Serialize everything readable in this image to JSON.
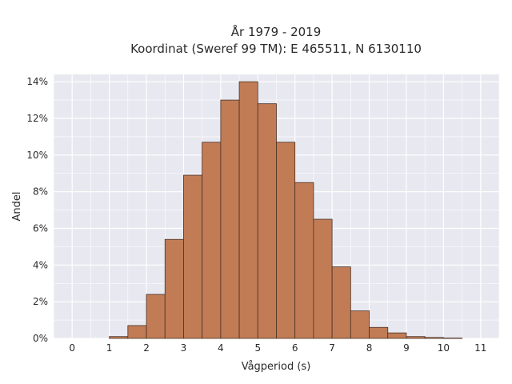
{
  "chart_data": {
    "type": "bar",
    "title": "År 1979 - 2019",
    "subtitle": "Koordinat (Sweref 99 TM): E 465511, N 6130110",
    "xlabel": "Vågperiod (s)",
    "ylabel": "Andel",
    "xlim": [
      -0.5,
      11.5
    ],
    "ylim": [
      0,
      14.4
    ],
    "x_ticks": [
      0,
      1,
      2,
      3,
      4,
      5,
      6,
      7,
      8,
      9,
      10,
      11
    ],
    "x_tick_labels": [
      "0",
      "1",
      "2",
      "3",
      "4",
      "5",
      "6",
      "7",
      "8",
      "9",
      "10",
      "11"
    ],
    "y_ticks": [
      0,
      2,
      4,
      6,
      8,
      10,
      12,
      14
    ],
    "y_tick_labels": [
      "0%",
      "2%",
      "4%",
      "6%",
      "8%",
      "10%",
      "12%",
      "14%"
    ],
    "bin_width": 0.5,
    "bins": [
      {
        "start": 1.0,
        "value": 0.1
      },
      {
        "start": 1.5,
        "value": 0.7
      },
      {
        "start": 2.0,
        "value": 2.4
      },
      {
        "start": 2.5,
        "value": 5.4
      },
      {
        "start": 3.0,
        "value": 8.9
      },
      {
        "start": 3.5,
        "value": 10.7
      },
      {
        "start": 4.0,
        "value": 13.0
      },
      {
        "start": 4.5,
        "value": 14.0
      },
      {
        "start": 5.0,
        "value": 12.8
      },
      {
        "start": 5.5,
        "value": 10.7
      },
      {
        "start": 6.0,
        "value": 8.5
      },
      {
        "start": 6.5,
        "value": 6.5
      },
      {
        "start": 7.0,
        "value": 3.9
      },
      {
        "start": 7.5,
        "value": 1.5
      },
      {
        "start": 8.0,
        "value": 0.6
      },
      {
        "start": 8.5,
        "value": 0.3
      },
      {
        "start": 9.0,
        "value": 0.1
      },
      {
        "start": 9.5,
        "value": 0.05
      },
      {
        "start": 10.0,
        "value": 0.02
      }
    ],
    "grid": true,
    "colors": {
      "bar_fill": "#c17c56",
      "bar_edge": "#4a2f22",
      "plot_bg": "#e8e8f0",
      "grid": "#ffffff"
    }
  }
}
